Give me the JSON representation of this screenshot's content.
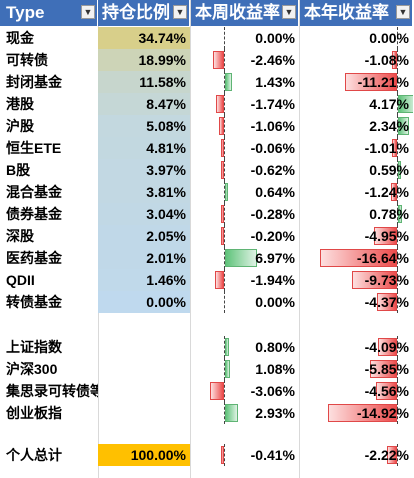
{
  "header": {
    "col_type": "Type",
    "col_holding": "持仓比例",
    "col_week": "本周收益率",
    "col_year": "本年收益率",
    "filter_icon": "dropdown-filter-icon"
  },
  "colors": {
    "header_bg": "#3f6fb8",
    "holding_scale_high": "#d8cf8a",
    "holding_scale_low": "#bfd9ee",
    "total_highlight": "#ffc000",
    "positive_bar": "#5fc37a",
    "negative_bar": "#ec4c4c"
  },
  "rows": [
    {
      "name": "现金",
      "holding": "34.74%",
      "holding_frac": 0.3474,
      "week": "0.00%",
      "week_val": 0.0,
      "year": "0.00%",
      "year_val": 0.0
    },
    {
      "name": "可转债",
      "holding": "18.99%",
      "holding_frac": 0.1899,
      "week": "-2.46%",
      "week_val": -2.46,
      "year": "-1.08%",
      "year_val": -1.08
    },
    {
      "name": "封闭基金",
      "holding": "11.58%",
      "holding_frac": 0.1158,
      "week": "1.43%",
      "week_val": 1.43,
      "year": "-11.21%",
      "year_val": -11.21
    },
    {
      "name": "港股",
      "holding": "8.47%",
      "holding_frac": 0.0847,
      "week": "-1.74%",
      "week_val": -1.74,
      "year": "4.17%",
      "year_val": 4.17
    },
    {
      "name": "沪股",
      "holding": "5.08%",
      "holding_frac": 0.0508,
      "week": "-1.06%",
      "week_val": -1.06,
      "year": "2.34%",
      "year_val": 2.34
    },
    {
      "name": "恒生ETE",
      "holding": "4.81%",
      "holding_frac": 0.0481,
      "week": "-0.06%",
      "week_val": -0.06,
      "year": "-1.01%",
      "year_val": -1.01
    },
    {
      "name": "B股",
      "holding": "3.97%",
      "holding_frac": 0.0397,
      "week": "-0.62%",
      "week_val": -0.62,
      "year": "0.59%",
      "year_val": 0.59
    },
    {
      "name": "混合基金",
      "holding": "3.81%",
      "holding_frac": 0.0381,
      "week": "0.64%",
      "week_val": 0.64,
      "year": "-1.24%",
      "year_val": -1.24
    },
    {
      "name": "债券基金",
      "holding": "3.04%",
      "holding_frac": 0.0304,
      "week": "-0.28%",
      "week_val": -0.28,
      "year": "0.78%",
      "year_val": 0.78
    },
    {
      "name": "深股",
      "holding": "2.05%",
      "holding_frac": 0.0205,
      "week": "-0.20%",
      "week_val": -0.2,
      "year": "-4.95%",
      "year_val": -4.95
    },
    {
      "name": "医药基金",
      "holding": "2.01%",
      "holding_frac": 0.0201,
      "week": "6.97%",
      "week_val": 6.97,
      "year": "-16.64%",
      "year_val": -16.64
    },
    {
      "name": "QDII",
      "holding": "1.46%",
      "holding_frac": 0.0146,
      "week": "-1.94%",
      "week_val": -1.94,
      "year": "-9.73%",
      "year_val": -9.73
    },
    {
      "name": "转债基金",
      "holding": "0.00%",
      "holding_frac": 0.0,
      "week": "0.00%",
      "week_val": 0.0,
      "year": "-4.37%",
      "year_val": -4.37
    }
  ],
  "indices": [
    {
      "name": "上证指数",
      "week": "0.80%",
      "week_val": 0.8,
      "year": "-4.09%",
      "year_val": -4.09
    },
    {
      "name": "沪深300",
      "week": "1.08%",
      "week_val": 1.08,
      "year": "-5.85%",
      "year_val": -5.85
    },
    {
      "name": "集思录可转债等权",
      "week": "-3.06%",
      "week_val": -3.06,
      "year": "-4.56%",
      "year_val": -4.56
    },
    {
      "name": "创业板指",
      "week": "2.93%",
      "week_val": 2.93,
      "year": "-14.92%",
      "year_val": -14.92
    }
  ],
  "total": {
    "name": "个人总计",
    "holding": "100.00%",
    "week": "-0.41%",
    "week_val": -0.41,
    "year": "-2.22%",
    "year_val": -2.22
  }
}
